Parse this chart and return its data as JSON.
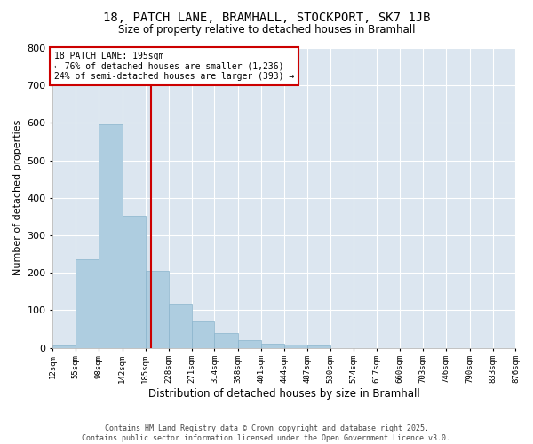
{
  "title1": "18, PATCH LANE, BRAMHALL, STOCKPORT, SK7 1JB",
  "title2": "Size of property relative to detached houses in Bramhall",
  "xlabel": "Distribution of detached houses by size in Bramhall",
  "ylabel": "Number of detached properties",
  "annotation_title": "18 PATCH LANE: 195sqm",
  "annotation_line1": "← 76% of detached houses are smaller (1,236)",
  "annotation_line2": "24% of semi-detached houses are larger (393) →",
  "footer1": "Contains HM Land Registry data © Crown copyright and database right 2025.",
  "footer2": "Contains public sector information licensed under the Open Government Licence v3.0.",
  "property_size": 195,
  "bin_edges": [
    12,
    55,
    98,
    142,
    185,
    228,
    271,
    314,
    358,
    401,
    444,
    487,
    530,
    574,
    617,
    660,
    703,
    746,
    790,
    833,
    876
  ],
  "bar_heights": [
    5,
    237,
    596,
    352,
    205,
    117,
    70,
    40,
    20,
    10,
    8,
    5,
    0,
    0,
    0,
    0,
    0,
    0,
    0,
    0
  ],
  "bar_color": "#aecde0",
  "bar_edge_color": "#8ab4cc",
  "vline_color": "#cc0000",
  "annotation_box_color": "#cc0000",
  "plot_bg_color": "#dce6f0",
  "figure_bg_color": "#ffffff",
  "grid_color": "#ffffff",
  "ylim": [
    0,
    800
  ],
  "yticks": [
    0,
    100,
    200,
    300,
    400,
    500,
    600,
    700,
    800
  ]
}
